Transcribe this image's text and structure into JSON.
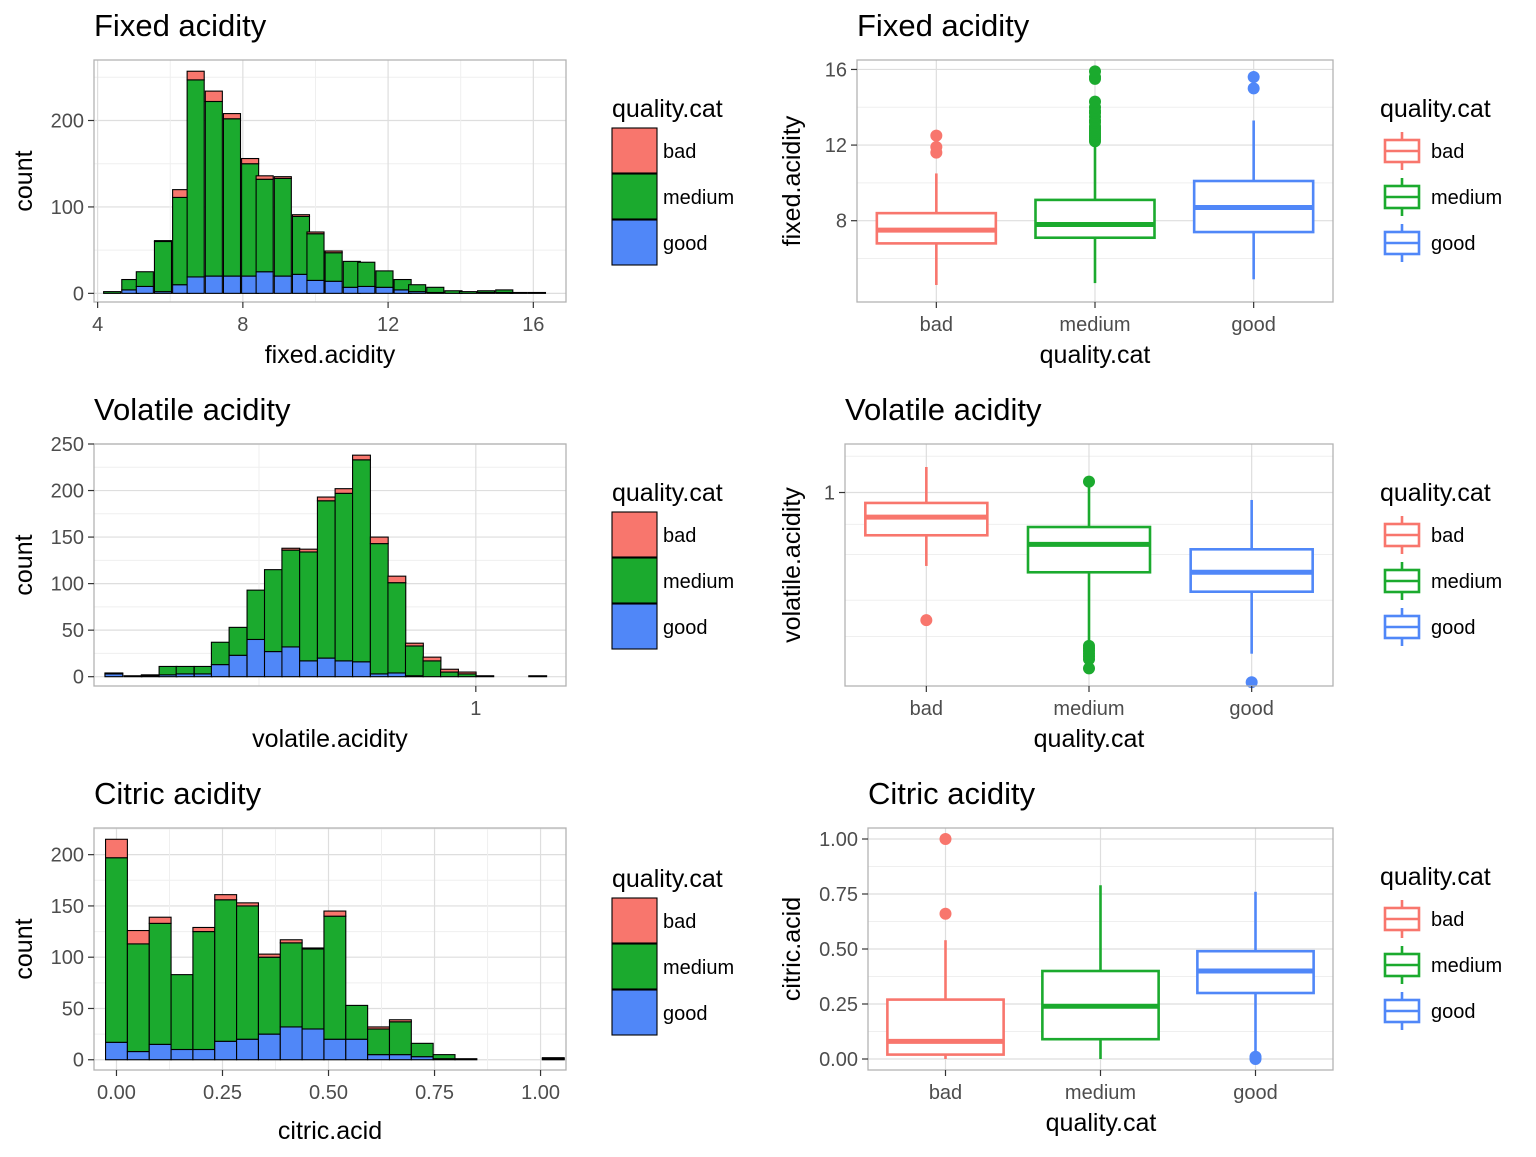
{
  "colors": {
    "bad": "#F8766D",
    "medium": "#1BAA2E",
    "good": "#5087F8",
    "grid": "#DEDEDE",
    "grid_minor": "#EFEFEF",
    "panel_border": "#B3B3B3",
    "text": "#000000",
    "tick_text": "#4D4D4D"
  },
  "chart_data": [
    {
      "id": "fixed-hist",
      "type": "bar",
      "stacked": true,
      "title": "Fixed acidity",
      "xlabel": "fixed.acidity",
      "ylabel": "count",
      "xlim": [
        3.9,
        16.9
      ],
      "ylim": [
        -10,
        270
      ],
      "xticks": [
        4,
        8,
        12,
        16
      ],
      "yticks": [
        0,
        100,
        200
      ],
      "bin_width": 0.47,
      "x": [
        4.4,
        4.9,
        5.3,
        5.8,
        6.3,
        6.7,
        7.2,
        7.7,
        8.2,
        8.6,
        9.1,
        9.6,
        10.0,
        10.5,
        11.0,
        11.4,
        11.9,
        12.4,
        12.8,
        13.3,
        13.8,
        14.2,
        14.7,
        15.2,
        15.6,
        16.1
      ],
      "legend_title": "quality.cat",
      "legend_position": "right",
      "series": [
        {
          "name": "good",
          "values": [
            0,
            4,
            8,
            2,
            10,
            19,
            20,
            20,
            20,
            25,
            20,
            22,
            15,
            14,
            7,
            8,
            7,
            4,
            2,
            1,
            0,
            0,
            1,
            1,
            0,
            0
          ]
        },
        {
          "name": "medium",
          "values": [
            2,
            12,
            17,
            58,
            101,
            228,
            202,
            182,
            130,
            107,
            113,
            67,
            54,
            33,
            30,
            28,
            19,
            12,
            8,
            6,
            3,
            2,
            2,
            3,
            1,
            1
          ]
        },
        {
          "name": "bad",
          "values": [
            0,
            0,
            0,
            1,
            9,
            10,
            12,
            6,
            6,
            4,
            2,
            2,
            2,
            2,
            0,
            0,
            0,
            0,
            0,
            0,
            0,
            0,
            0,
            0,
            0,
            0
          ]
        }
      ]
    },
    {
      "id": "fixed-box",
      "type": "box",
      "title": "Fixed acidity",
      "xlabel": "quality.cat",
      "ylabel": "fixed.acidity",
      "categories": [
        "bad",
        "medium",
        "good"
      ],
      "ylim": [
        3.7,
        16.5
      ],
      "yticks": [
        8,
        12,
        16
      ],
      "legend_title": "quality.cat",
      "legend_position": "right",
      "boxes": [
        {
          "name": "bad",
          "whisker_low": 4.6,
          "q1": 6.8,
          "median": 7.5,
          "q3": 8.4,
          "whisker_high": 10.5,
          "outliers": [
            11.6,
            11.9,
            12.5
          ]
        },
        {
          "name": "medium",
          "whisker_low": 4.7,
          "q1": 7.1,
          "median": 7.8,
          "q3": 9.1,
          "whisker_high": 12.1,
          "outliers": [
            12.2,
            12.3,
            12.4,
            12.5,
            12.6,
            12.7,
            12.8,
            12.9,
            13.0,
            13.2,
            13.3,
            13.5,
            13.7,
            13.8,
            14.0,
            14.3,
            15.5,
            15.6,
            15.9
          ]
        },
        {
          "name": "good",
          "whisker_low": 4.9,
          "q1": 7.4,
          "median": 8.7,
          "q3": 10.1,
          "whisker_high": 13.3,
          "outliers": [
            15.0,
            15.6
          ]
        }
      ]
    },
    {
      "id": "volatile-hist",
      "type": "bar",
      "stacked": true,
      "title": "Volatile acidity",
      "xlabel": "volatile.acidity",
      "ylabel": "count",
      "xscale": "log10",
      "xlim": [
        0.12,
        1.65
      ],
      "ylim": [
        -10,
        250
      ],
      "xticks": [
        1
      ],
      "yticks": [
        0,
        50,
        100,
        150,
        200,
        250
      ],
      "bin_log_width": 0.043,
      "x": [
        0.134,
        0.149,
        0.164,
        0.181,
        0.199,
        0.22,
        0.242,
        0.267,
        0.295,
        0.325,
        0.358,
        0.395,
        0.436,
        0.481,
        0.53,
        0.585,
        0.645,
        0.711,
        0.784,
        0.864,
        0.953,
        1.051,
        1.159,
        1.279,
        1.41
      ],
      "legend_title": "quality.cat",
      "legend_position": "right",
      "series": [
        {
          "name": "good",
          "values": [
            3,
            1,
            1,
            2,
            3,
            3,
            13,
            23,
            40,
            27,
            32,
            17,
            20,
            17,
            16,
            3,
            4,
            1,
            0,
            0,
            0,
            0,
            0,
            0,
            0
          ]
        },
        {
          "name": "medium",
          "values": [
            1,
            0,
            1,
            9,
            8,
            8,
            24,
            30,
            53,
            88,
            104,
            117,
            169,
            180,
            217,
            140,
            97,
            32,
            17,
            5,
            3,
            0,
            0,
            0,
            0
          ]
        },
        {
          "name": "bad",
          "values": [
            0,
            0,
            0,
            0,
            0,
            0,
            0,
            0,
            0,
            0,
            2,
            3,
            4,
            5,
            5,
            7,
            7,
            3,
            4,
            3,
            2,
            1,
            0,
            0,
            1
          ]
        }
      ]
    },
    {
      "id": "volatile-box",
      "type": "box",
      "title": "Volatile acidity",
      "xlabel": "quality.cat",
      "ylabel": "volatile.acidity",
      "yscale": "log10",
      "categories": [
        "bad",
        "medium",
        "good"
      ],
      "ylim": [
        0.115,
        1.72
      ],
      "yticks": [
        1
      ],
      "legend_title": "quality.cat",
      "legend_position": "right",
      "boxes": [
        {
          "name": "bad",
          "whisker_low": 0.44,
          "q1": 0.62,
          "median": 0.76,
          "q3": 0.89,
          "whisker_high": 1.33,
          "outliers": [
            0.24
          ]
        },
        {
          "name": "medium",
          "whisker_low": 0.18,
          "q1": 0.41,
          "median": 0.56,
          "q3": 0.68,
          "whisker_high": 1.13,
          "outliers": [
            0.14,
            0.155,
            0.16,
            0.165,
            0.17,
            0.175,
            0.18,
            1.13
          ]
        },
        {
          "name": "good",
          "whisker_low": 0.165,
          "q1": 0.33,
          "median": 0.41,
          "q3": 0.53,
          "whisker_high": 0.92,
          "outliers": [
            0.12
          ]
        }
      ]
    },
    {
      "id": "citric-hist",
      "type": "bar",
      "stacked": true,
      "title": "Citric acidity",
      "xlabel": "citric.acid",
      "ylabel": "count",
      "xlim": [
        -0.053,
        1.06
      ],
      "ylim": [
        -10,
        226
      ],
      "xticks": [
        0.0,
        0.25,
        0.5,
        0.75,
        1.0
      ],
      "xticklabels": [
        "0.00",
        "0.25",
        "0.50",
        "0.75",
        "1.00"
      ],
      "yticks": [
        0,
        50,
        100,
        150,
        200
      ],
      "bin_width": 0.0515,
      "x": [
        0.0,
        0.0515,
        0.103,
        0.1545,
        0.206,
        0.2575,
        0.309,
        0.3605,
        0.412,
        0.4635,
        0.515,
        0.5665,
        0.618,
        0.6695,
        0.721,
        0.7725,
        0.824,
        0.8755,
        0.927,
        0.9785,
        1.03
      ],
      "legend_title": "quality.cat",
      "legend_position": "right",
      "series": [
        {
          "name": "good",
          "values": [
            17,
            8,
            15,
            10,
            10,
            18,
            20,
            25,
            32,
            30,
            20,
            20,
            5,
            5,
            3,
            1,
            0,
            0,
            0,
            0,
            0
          ]
        },
        {
          "name": "medium",
          "values": [
            180,
            105,
            118,
            73,
            115,
            138,
            130,
            75,
            82,
            78,
            120,
            33,
            25,
            32,
            13,
            4,
            1,
            0,
            0,
            0,
            1
          ]
        },
        {
          "name": "bad",
          "values": [
            18,
            13,
            6,
            0,
            4,
            5,
            3,
            3,
            3,
            1,
            5,
            0,
            2,
            2,
            0,
            0,
            0,
            0,
            0,
            0,
            1
          ]
        }
      ]
    },
    {
      "id": "citric-box",
      "type": "box",
      "title": "Citric acidity",
      "xlabel": "quality.cat",
      "ylabel": "citric.acid",
      "categories": [
        "bad",
        "medium",
        "good"
      ],
      "ylim": [
        -0.05,
        1.05
      ],
      "yticks": [
        0.0,
        0.25,
        0.5,
        0.75,
        1.0
      ],
      "yticklabels": [
        "0.00",
        "0.25",
        "0.50",
        "0.75",
        "1.00"
      ],
      "legend_title": "quality.cat",
      "legend_position": "right",
      "boxes": [
        {
          "name": "bad",
          "whisker_low": 0.0,
          "q1": 0.02,
          "median": 0.08,
          "q3": 0.27,
          "whisker_high": 0.54,
          "outliers": [
            0.66,
            1.0
          ]
        },
        {
          "name": "medium",
          "whisker_low": 0.0,
          "q1": 0.09,
          "median": 0.24,
          "q3": 0.4,
          "whisker_high": 0.79,
          "outliers": []
        },
        {
          "name": "good",
          "whisker_low": 0.0,
          "q1": 0.3,
          "median": 0.4,
          "q3": 0.49,
          "whisker_high": 0.76,
          "outliers": [
            0.0,
            0.005,
            0.01
          ]
        }
      ]
    }
  ]
}
